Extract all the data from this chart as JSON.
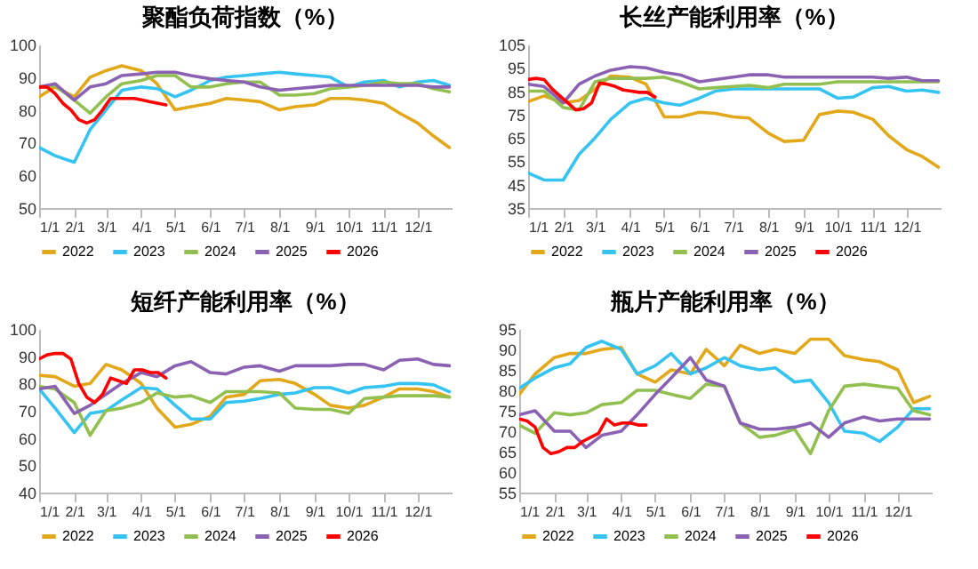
{
  "chart_data": [
    {
      "type": "line",
      "title": "聚酯负荷指数（%）",
      "legend": "bottom",
      "x": [
        "--01-01",
        "--01-15",
        "--02-01",
        "--02-15",
        "--03-01",
        "--03-15",
        "--04-01",
        "--04-15",
        "--05-01",
        "--05-15",
        "--06-01",
        "--06-15",
        "--07-01",
        "--07-15",
        "--08-01",
        "--08-15",
        "--09-01",
        "--09-15",
        "--10-01",
        "--10-15",
        "--11-01",
        "--11-15",
        "--12-01",
        "--12-15",
        "--12-29"
      ],
      "xlim": [
        "--01-01",
        "--12-31"
      ],
      "xticks": [
        {
          "value": "--01-01",
          "label": "1/1"
        },
        {
          "value": "--02-01",
          "label": "2/1"
        },
        {
          "value": "--03-01",
          "label": "3/1"
        },
        {
          "value": "--04-01",
          "label": "4/1"
        },
        {
          "value": "--05-01",
          "label": "5/1"
        },
        {
          "value": "--06-01",
          "label": "6/1"
        },
        {
          "value": "--07-01",
          "label": "7/1"
        },
        {
          "value": "--08-01",
          "label": "8/1"
        },
        {
          "value": "--09-01",
          "label": "9/1"
        },
        {
          "value": "--10-01",
          "label": "10/1"
        },
        {
          "value": "--11-01",
          "label": "11/1"
        },
        {
          "value": "--12-01",
          "label": "12/1"
        }
      ],
      "ylim": [
        50,
        100
      ],
      "yticks": [
        50,
        60,
        70,
        80,
        90,
        100
      ],
      "series": [
        {
          "name": "2022",
          "color": "#e3a81a",
          "values": [
            84,
            87,
            84,
            90,
            92,
            93.5,
            92,
            88,
            80,
            81,
            82,
            83.5,
            83,
            82.5,
            80,
            81,
            81.5,
            83.5,
            83.5,
            83,
            82,
            79,
            76,
            72,
            68.5
          ]
        },
        {
          "name": "2023",
          "color": "#35c4f2",
          "values": [
            68.5,
            66,
            64,
            74,
            80,
            86,
            87,
            86.5,
            84,
            86,
            89,
            90,
            90.5,
            91,
            91.5,
            91,
            90.5,
            90,
            87,
            88.5,
            89,
            87,
            88.5,
            89,
            87.5
          ]
        },
        {
          "name": "2024",
          "color": "#92c050",
          "values": [
            87,
            87.5,
            83,
            79,
            84,
            88,
            89,
            90.5,
            90.5,
            87,
            87,
            88,
            88.5,
            88.5,
            84.5,
            84.5,
            85,
            86.5,
            87,
            87.5,
            88.5,
            88,
            88,
            86.5,
            85.5
          ]
        },
        {
          "name": "2025",
          "color": "#8b62b3",
          "values": [
            87,
            88,
            83,
            87,
            88,
            90.5,
            91,
            91.5,
            91.5,
            90.5,
            89.5,
            89,
            88.5,
            87,
            86,
            86.5,
            87,
            87.5,
            87.5,
            87.5,
            87.5,
            87.5,
            87.5,
            87,
            87
          ]
        },
        {
          "name": "2026",
          "color": "#ff0000",
          "x": [
            "--01-01",
            "--01-08",
            "--01-15",
            "--01-22",
            "--01-29",
            "--02-05",
            "--02-12",
            "--02-19",
            "--02-26",
            "--03-05",
            "--03-12",
            "--03-19",
            "--03-26",
            "--04-02",
            "--04-09",
            "--04-16",
            "--04-23"
          ],
          "values": [
            87,
            87,
            85,
            82,
            80,
            77,
            76,
            77,
            80,
            83.5,
            83.5,
            83.5,
            83.5,
            83,
            82.5,
            82,
            81.5
          ]
        }
      ]
    },
    {
      "type": "line",
      "title": "长丝产能利用率（%）",
      "legend": "bottom",
      "x": [
        "--01-01",
        "--01-15",
        "--02-01",
        "--02-15",
        "--03-01",
        "--03-15",
        "--04-01",
        "--04-15",
        "--05-01",
        "--05-15",
        "--06-01",
        "--06-15",
        "--07-01",
        "--07-15",
        "--08-01",
        "--08-15",
        "--09-01",
        "--09-15",
        "--10-01",
        "--10-15",
        "--11-01",
        "--11-15",
        "--12-01",
        "--12-15",
        "--12-29"
      ],
      "xlim": [
        "--01-01",
        "--12-31"
      ],
      "xticks": [
        {
          "value": "--01-01",
          "label": "1/1"
        },
        {
          "value": "--02-01",
          "label": "2/1"
        },
        {
          "value": "--03-01",
          "label": "3/1"
        },
        {
          "value": "--04-01",
          "label": "4/1"
        },
        {
          "value": "--05-01",
          "label": "5/1"
        },
        {
          "value": "--06-01",
          "label": "6/1"
        },
        {
          "value": "--07-01",
          "label": "7/1"
        },
        {
          "value": "--08-01",
          "label": "8/1"
        },
        {
          "value": "--09-01",
          "label": "9/1"
        },
        {
          "value": "--10-01",
          "label": "10/1"
        },
        {
          "value": "--11-01",
          "label": "11/1"
        },
        {
          "value": "--12-01",
          "label": "12/1"
        }
      ],
      "ylim": [
        35,
        105
      ],
      "yticks": [
        35,
        45,
        55,
        65,
        75,
        85,
        95,
        105
      ],
      "series": [
        {
          "name": "2022",
          "color": "#e3a81a",
          "values": [
            80.5,
            83,
            80,
            81,
            86,
            91.5,
            91,
            88,
            74,
            74,
            76,
            75.5,
            74,
            73.5,
            67,
            63.5,
            64,
            75,
            76.5,
            76,
            73,
            66,
            60,
            57,
            52.5
          ]
        },
        {
          "name": "2023",
          "color": "#35c4f2",
          "values": [
            50,
            47,
            47,
            58,
            65,
            73,
            80,
            82,
            80,
            79,
            82,
            85,
            86,
            86,
            86,
            86,
            86,
            86,
            82,
            82.5,
            86.5,
            87,
            85,
            85.5,
            84.5
          ]
        },
        {
          "name": "2024",
          "color": "#92c050",
          "values": [
            85,
            85,
            78,
            77,
            89,
            90.5,
            90.5,
            90.5,
            91,
            89,
            86,
            86.5,
            87,
            87.5,
            86.5,
            88,
            88,
            88,
            89,
            89,
            89,
            89,
            89,
            89,
            89
          ]
        },
        {
          "name": "2025",
          "color": "#8b62b3",
          "values": [
            88,
            87,
            80,
            88,
            91.5,
            94,
            95.5,
            95,
            93,
            92,
            89,
            90,
            91,
            92,
            92,
            91,
            91,
            91,
            91,
            91,
            91,
            90.5,
            91,
            89.5,
            89.5
          ]
        },
        {
          "name": "2026",
          "color": "#ff0000",
          "x": [
            "--01-01",
            "--01-08",
            "--01-15",
            "--01-22",
            "--01-29",
            "--02-05",
            "--02-12",
            "--02-19",
            "--02-26",
            "--03-05",
            "--03-12",
            "--03-19",
            "--03-26",
            "--04-02",
            "--04-09",
            "--04-16",
            "--04-23"
          ],
          "values": [
            90,
            90.5,
            90,
            86,
            83,
            80,
            77,
            77.5,
            80,
            88.5,
            88,
            87,
            85.5,
            85,
            84.5,
            84.5,
            82.5
          ]
        }
      ]
    },
    {
      "type": "line",
      "title": "短纤产能利用率（%）",
      "legend": "bottom",
      "x": [
        "--01-01",
        "--01-15",
        "--02-01",
        "--02-15",
        "--03-01",
        "--03-15",
        "--04-01",
        "--04-15",
        "--05-01",
        "--05-15",
        "--06-01",
        "--06-15",
        "--07-01",
        "--07-15",
        "--08-01",
        "--08-15",
        "--09-01",
        "--09-15",
        "--10-01",
        "--10-15",
        "--11-01",
        "--11-15",
        "--12-01",
        "--12-15",
        "--12-29"
      ],
      "xlim": [
        "--01-01",
        "--12-31"
      ],
      "xticks": [
        {
          "value": "--01-01",
          "label": "1/1"
        },
        {
          "value": "--02-01",
          "label": "2/1"
        },
        {
          "value": "--03-01",
          "label": "3/1"
        },
        {
          "value": "--04-01",
          "label": "4/1"
        },
        {
          "value": "--05-01",
          "label": "5/1"
        },
        {
          "value": "--06-01",
          "label": "6/1"
        },
        {
          "value": "--07-01",
          "label": "7/1"
        },
        {
          "value": "--08-01",
          "label": "8/1"
        },
        {
          "value": "--09-01",
          "label": "9/1"
        },
        {
          "value": "--10-01",
          "label": "10/1"
        },
        {
          "value": "--11-01",
          "label": "11/1"
        },
        {
          "value": "--12-01",
          "label": "12/1"
        }
      ],
      "ylim": [
        40,
        100
      ],
      "yticks": [
        40,
        50,
        60,
        70,
        80,
        90,
        100
      ],
      "series": [
        {
          "name": "2022",
          "color": "#e3a81a",
          "values": [
            83,
            82.5,
            79,
            80,
            87,
            85,
            80,
            71,
            64,
            65,
            68,
            75,
            76,
            81,
            81.5,
            80,
            76,
            72,
            71,
            72,
            75,
            78,
            78,
            77,
            75
          ]
        },
        {
          "name": "2023",
          "color": "#35c4f2",
          "values": [
            78,
            71,
            62,
            69,
            70,
            74,
            78.5,
            78,
            72,
            67,
            67,
            73,
            73.5,
            74.5,
            76,
            76.5,
            78.5,
            78.5,
            76.5,
            78.5,
            79,
            80,
            80,
            79.5,
            77
          ]
        },
        {
          "name": "2024",
          "color": "#92c050",
          "values": [
            79,
            78,
            73,
            61,
            70,
            71,
            73,
            76.5,
            75,
            75.5,
            73,
            77,
            77,
            77,
            76.5,
            71,
            70.5,
            70.5,
            69,
            74.5,
            75,
            75.5,
            75.5,
            75.5,
            75
          ]
        },
        {
          "name": "2025",
          "color": "#8b62b3",
          "values": [
            78,
            79,
            69,
            72,
            76,
            80,
            84,
            82.5,
            86.5,
            88,
            84,
            83.5,
            86,
            86.5,
            84.5,
            86.5,
            86.5,
            86.5,
            87,
            87,
            85,
            88.5,
            89,
            87,
            86.5
          ]
        },
        {
          "name": "2026",
          "color": "#ff0000",
          "x": [
            "--01-01",
            "--01-08",
            "--01-15",
            "--01-22",
            "--01-29",
            "--02-05",
            "--02-12",
            "--02-19",
            "--02-26",
            "--03-05",
            "--03-12",
            "--03-19",
            "--03-26",
            "--04-02",
            "--04-09",
            "--04-16",
            "--04-23"
          ],
          "values": [
            89,
            90.5,
            91,
            91,
            89,
            80,
            75,
            73,
            76,
            82,
            81,
            80,
            85,
            85,
            84,
            84,
            82
          ]
        }
      ]
    },
    {
      "type": "line",
      "title": "瓶片产能利用率（%）",
      "legend": "bottom",
      "x": [
        "--01-01",
        "--01-15",
        "--02-01",
        "--02-15",
        "--03-01",
        "--03-15",
        "--04-01",
        "--04-15",
        "--05-01",
        "--05-15",
        "--06-01",
        "--06-15",
        "--07-01",
        "--07-15",
        "--08-01",
        "--08-15",
        "--09-01",
        "--09-15",
        "--10-01",
        "--10-15",
        "--11-01",
        "--11-15",
        "--12-01",
        "--12-15",
        "--12-29"
      ],
      "xlim": [
        "--01-01",
        "--12-31"
      ],
      "xticks": [
        {
          "value": "--01-01",
          "label": "1/1"
        },
        {
          "value": "--02-01",
          "label": "2/1"
        },
        {
          "value": "--03-01",
          "label": "3/1"
        },
        {
          "value": "--04-01",
          "label": "4/1"
        },
        {
          "value": "--05-01",
          "label": "5/1"
        },
        {
          "value": "--06-01",
          "label": "6/1"
        },
        {
          "value": "--07-01",
          "label": "7/1"
        },
        {
          "value": "--08-01",
          "label": "8/1"
        },
        {
          "value": "--09-01",
          "label": "9/1"
        },
        {
          "value": "--10-01",
          "label": "10/1"
        },
        {
          "value": "--11-01",
          "label": "11/1"
        },
        {
          "value": "--12-01",
          "label": "12/1"
        }
      ],
      "ylim": [
        55,
        95
      ],
      "yticks": [
        55,
        60,
        65,
        70,
        75,
        80,
        85,
        90,
        95
      ],
      "series": [
        {
          "name": "2022",
          "color": "#e3a81a",
          "values": [
            79,
            84,
            88,
            89,
            89,
            90,
            90.5,
            84,
            82,
            85,
            84,
            90,
            86,
            91,
            89,
            90,
            89,
            92.5,
            92.5,
            88.5,
            87.5,
            87,
            85,
            77,
            78.5
          ]
        },
        {
          "name": "2023",
          "color": "#35c4f2",
          "values": [
            80.5,
            83,
            85.5,
            86.5,
            90.5,
            92,
            90,
            84,
            86,
            89,
            84,
            85.5,
            88,
            86,
            85,
            85.5,
            82,
            82.5,
            77,
            70,
            69.5,
            67.5,
            71,
            75.5,
            75.5
          ]
        },
        {
          "name": "2024",
          "color": "#92c050",
          "values": [
            71.5,
            69.5,
            74.5,
            74,
            74.5,
            76.5,
            77,
            80,
            80,
            79,
            78,
            81.5,
            81,
            72,
            68.5,
            69,
            70.5,
            64.5,
            75,
            81,
            81.5,
            81,
            80.5,
            75,
            74
          ]
        },
        {
          "name": "2025",
          "color": "#8b62b3",
          "values": [
            74,
            75,
            70,
            70,
            66,
            69,
            70,
            74,
            79,
            83,
            88,
            82.5,
            81,
            72,
            70.5,
            70.5,
            71,
            72,
            68.5,
            72,
            73.5,
            72.5,
            73,
            73,
            73
          ]
        },
        {
          "name": "2026",
          "color": "#ff0000",
          "x": [
            "--01-01",
            "--01-08",
            "--01-15",
            "--01-22",
            "--01-29",
            "--02-05",
            "--02-12",
            "--02-19",
            "--02-26",
            "--03-05",
            "--03-12",
            "--03-19",
            "--03-26",
            "--04-02",
            "--04-09",
            "--04-16",
            "--04-23"
          ],
          "values": [
            73,
            72.5,
            71,
            66,
            64.5,
            65,
            66,
            66,
            67.5,
            68.5,
            69.5,
            73,
            71.5,
            72,
            72,
            71.5,
            71.5
          ]
        }
      ]
    }
  ]
}
